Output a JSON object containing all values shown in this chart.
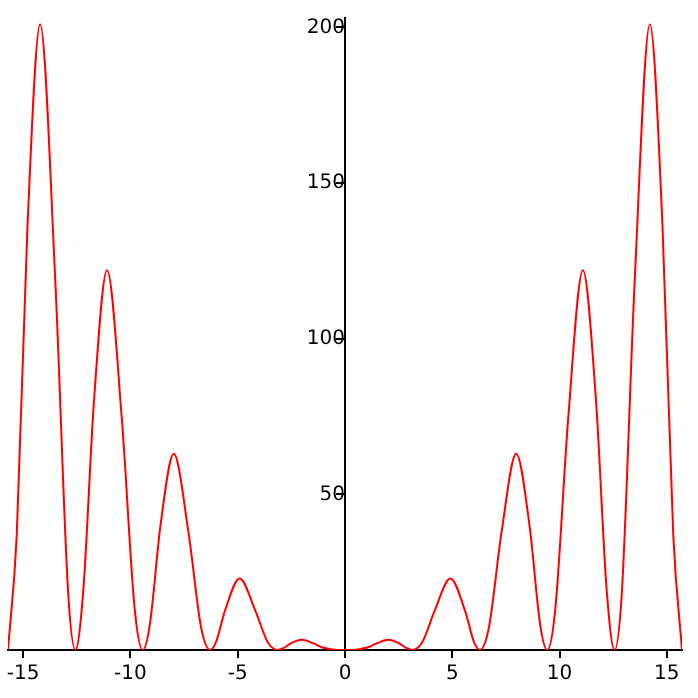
{
  "chart_data": {
    "type": "line",
    "x": [
      -15.708,
      -15.3,
      -14.8,
      -14.21,
      -13.5,
      -12.9,
      -12.566,
      -12.2,
      -11.7,
      -11.09,
      -10.4,
      -9.8,
      -9.425,
      -9.1,
      -8.6,
      -7.98,
      -7.3,
      -6.7,
      -6.283,
      -6,
      -5.6,
      -4.91,
      -4.2,
      -3.6,
      -3.142,
      -2.9,
      -2.5,
      -2.03,
      -1.5,
      -1,
      -0.5,
      0,
      0.5,
      1,
      1.5,
      2.03,
      2.5,
      2.9,
      3.142,
      3.6,
      4.2,
      4.91,
      5.6,
      6,
      6.283,
      6.7,
      7.3,
      7.98,
      8.6,
      9.1,
      9.425,
      9.8,
      10.4,
      11.09,
      11.7,
      12.2,
      12.566,
      12.9,
      13.5,
      14.21,
      14.8,
      15.3,
      15.708
    ],
    "series": [
      {
        "color": "#ff0000",
        "values": [
          0,
          37,
          136,
          201,
          118,
          18,
          0,
          19,
          80,
          122,
          74,
          13,
          0,
          8,
          40,
          63,
          38,
          7,
          0,
          2.8,
          12.5,
          23,
          13,
          2.5,
          0,
          0.5,
          2.2,
          3.3,
          2.2,
          0.7,
          0.1,
          0,
          0.1,
          0.7,
          2.2,
          3.3,
          2.2,
          0.5,
          0,
          2.5,
          13,
          23,
          12.5,
          2.8,
          0,
          7,
          38,
          63,
          40,
          8,
          0,
          13,
          74,
          122,
          80,
          19,
          0,
          18,
          118,
          201,
          136,
          37,
          0
        ]
      }
    ],
    "xlim": [
      -15.708,
      15.708
    ],
    "xticks": [
      -15,
      -10,
      -5,
      0,
      5,
      10,
      15
    ],
    "ylim": [
      0,
      203
    ],
    "yticks": [
      {
        "value": 0,
        "label": null
      },
      50,
      100,
      150,
      200
    ],
    "grid": false,
    "legend": false,
    "marker": "none",
    "line_style": "solid"
  }
}
